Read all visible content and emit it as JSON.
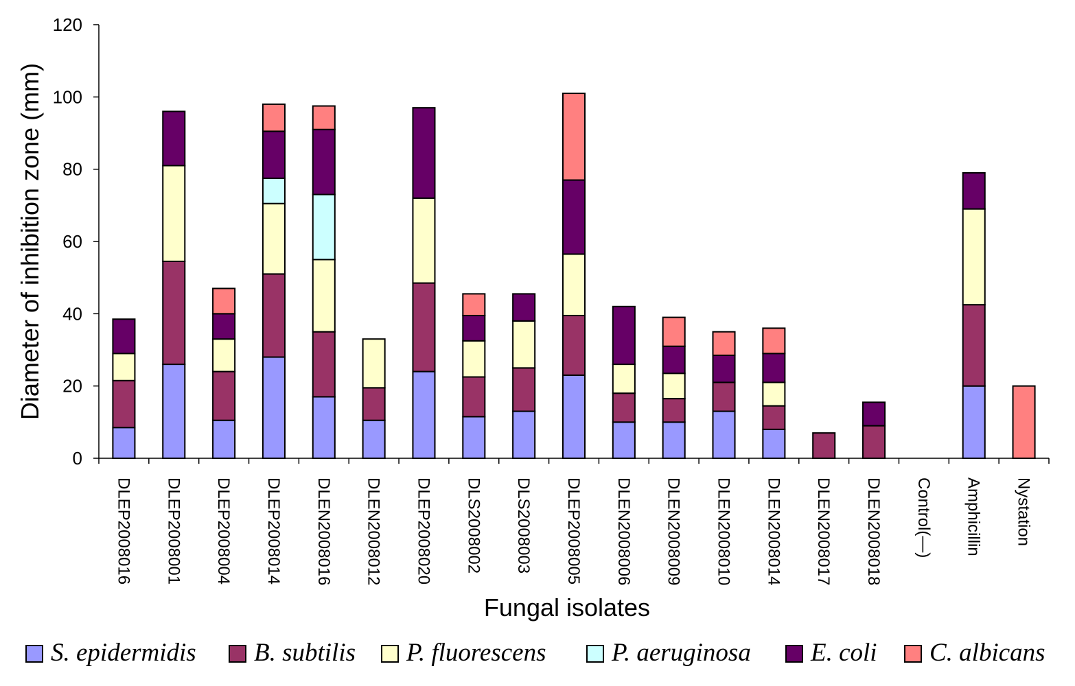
{
  "chart_data": {
    "type": "bar",
    "stacked": true,
    "title": "",
    "xlabel": "Fungal isolates",
    "ylabel": "Diameter of inhibition zone (mm)",
    "ylim": [
      0,
      120
    ],
    "yticks": [
      0,
      20,
      40,
      60,
      80,
      100,
      120
    ],
    "grid": false,
    "legend_position": "bottom",
    "categories": [
      "DLEP2008016",
      "DLEP2008001",
      "DLEP2008004",
      "DLEP2008014",
      "DLEN2008016",
      "DLEN2008012",
      "DLEP2008020",
      "DLS2008002",
      "DLS2008003",
      "DLEP2008005",
      "DLEN2008006",
      "DLEN2008009",
      "DLEN2008010",
      "DLEN2008014",
      "DLEN2008017",
      "DLEN2008018",
      "Control(—)",
      "Amphicillin",
      "Nystation"
    ],
    "series": [
      {
        "name": "S. epidermidis",
        "color": "#9999ff",
        "values": [
          8.5,
          26,
          10.5,
          28,
          17,
          10.5,
          24,
          11.5,
          13,
          23,
          10,
          10,
          13,
          8,
          0,
          0,
          0,
          20,
          0
        ]
      },
      {
        "name": "B. subtilis",
        "color": "#993366",
        "values": [
          13,
          28.5,
          13.5,
          23,
          18,
          9,
          24.5,
          11,
          12,
          16.5,
          8,
          6.5,
          8,
          6.5,
          7,
          9,
          0,
          22.5,
          0
        ]
      },
      {
        "name": "P. fluorescens",
        "color": "#ffffcc",
        "values": [
          7.5,
          26.5,
          9,
          19.5,
          20,
          13.5,
          23.5,
          10,
          13,
          17,
          8,
          7,
          0,
          6.5,
          0,
          0,
          0,
          26.5,
          0
        ]
      },
      {
        "name": "P. aeruginosa",
        "color": "#ccffff",
        "values": [
          0,
          0,
          0,
          7,
          18,
          0,
          0,
          0,
          0,
          0,
          0,
          0,
          0,
          0,
          0,
          0,
          0,
          0,
          0
        ]
      },
      {
        "name": "E. coli",
        "color": "#660066",
        "values": [
          9.5,
          15,
          7,
          13,
          18,
          0,
          25,
          7,
          7.5,
          20.5,
          16,
          7.5,
          7.5,
          8,
          0,
          6.5,
          0,
          10,
          0
        ]
      },
      {
        "name": "C. albicans",
        "color": "#ff8080",
        "values": [
          0,
          0,
          7,
          7.5,
          6.5,
          0,
          0,
          6,
          0,
          24,
          0,
          8,
          6.5,
          7,
          0,
          0,
          0,
          0,
          20
        ]
      }
    ]
  }
}
